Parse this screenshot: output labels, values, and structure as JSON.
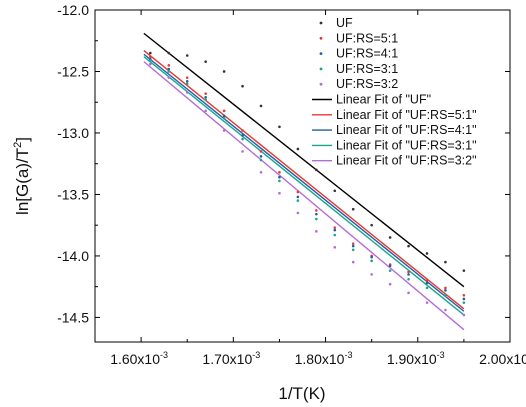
{
  "chart_data": {
    "type": "scatter",
    "title": "",
    "xlabel": "1/T(K)",
    "ylabel_base": "ln[G(a)/T",
    "ylabel_sup": "2",
    "ylabel_tail": "]",
    "xlim": [
      0.00155,
      0.002
    ],
    "ylim": [
      -14.7,
      -12.0
    ],
    "x_ticks": [
      {
        "value": 0.0016,
        "mant": "1.60x10",
        "exp": "-3"
      },
      {
        "value": 0.0017,
        "mant": "1.70x10",
        "exp": "-3"
      },
      {
        "value": 0.0018,
        "mant": "1.80x10",
        "exp": "-3"
      },
      {
        "value": 0.0019,
        "mant": "1.90x10",
        "exp": "-3"
      },
      {
        "value": 0.002,
        "mant": "2.00x10",
        "exp": "-3"
      }
    ],
    "y_ticks": [
      {
        "value": -12.0,
        "label": "-12.0"
      },
      {
        "value": -12.5,
        "label": "-12.5"
      },
      {
        "value": -13.0,
        "label": "-13.0"
      },
      {
        "value": -13.5,
        "label": "-13.5"
      },
      {
        "value": -14.0,
        "label": "-14.0"
      },
      {
        "value": -14.5,
        "label": "-14.5"
      }
    ],
    "legend_position": "top-right",
    "series": [
      {
        "name": "UF",
        "color": "#333333",
        "x": [
          0.00161,
          0.00163,
          0.00165,
          0.00167,
          0.00169,
          0.00171,
          0.00173,
          0.00175,
          0.00177,
          0.00179,
          0.00181,
          0.00183,
          0.00185,
          0.00187,
          0.00189,
          0.00191,
          0.00193,
          0.00195
        ],
        "y": [
          -12.35,
          -12.35,
          -12.37,
          -12.42,
          -12.5,
          -12.62,
          -12.78,
          -12.95,
          -13.13,
          -13.3,
          -13.47,
          -13.62,
          -13.75,
          -13.85,
          -13.92,
          -13.98,
          -14.05,
          -14.12
        ]
      },
      {
        "name": "UF:RS=5:1",
        "color": "#e8372f",
        "x": [
          0.00161,
          0.00163,
          0.00165,
          0.00167,
          0.00169,
          0.00171,
          0.00173,
          0.00175,
          0.00177,
          0.00179,
          0.00181,
          0.00183,
          0.00185,
          0.00187,
          0.00189,
          0.00191,
          0.00193,
          0.00195
        ],
        "y": [
          -12.38,
          -12.45,
          -12.55,
          -12.68,
          -12.82,
          -12.98,
          -13.15,
          -13.32,
          -13.48,
          -13.63,
          -13.77,
          -13.9,
          -14.0,
          -14.07,
          -14.13,
          -14.2,
          -14.26,
          -14.32
        ]
      },
      {
        "name": "UF:RS=4:1",
        "color": "#1d5fa8",
        "x": [
          0.00161,
          0.00163,
          0.00165,
          0.00167,
          0.00169,
          0.00171,
          0.00173,
          0.00175,
          0.00177,
          0.00179,
          0.00181,
          0.00183,
          0.00185,
          0.00187,
          0.00189,
          0.00191,
          0.00193,
          0.00195
        ],
        "y": [
          -12.4,
          -12.48,
          -12.58,
          -12.71,
          -12.86,
          -13.02,
          -13.19,
          -13.36,
          -13.52,
          -13.66,
          -13.79,
          -13.92,
          -14.01,
          -14.08,
          -14.15,
          -14.22,
          -14.28,
          -14.35
        ]
      },
      {
        "name": "UF:RS=3:1",
        "color": "#1fa38c",
        "x": [
          0.00161,
          0.00163,
          0.00165,
          0.00167,
          0.00169,
          0.00171,
          0.00173,
          0.00175,
          0.00177,
          0.00179,
          0.00181,
          0.00183,
          0.00185,
          0.00187,
          0.00189,
          0.00191,
          0.00193,
          0.00195
        ],
        "y": [
          -12.41,
          -12.5,
          -12.6,
          -12.73,
          -12.88,
          -13.05,
          -13.22,
          -13.39,
          -13.55,
          -13.7,
          -13.83,
          -13.95,
          -14.04,
          -14.12,
          -14.19,
          -14.26,
          -14.32,
          -14.38
        ]
      },
      {
        "name": "UF:RS=3:2",
        "color": "#b46bd6",
        "x": [
          0.00161,
          0.00163,
          0.00165,
          0.00167,
          0.00169,
          0.00171,
          0.00173,
          0.00175,
          0.00177,
          0.00179,
          0.00181,
          0.00183,
          0.00185,
          0.00187,
          0.00189,
          0.00191,
          0.00193,
          0.00195
        ],
        "y": [
          -12.44,
          -12.55,
          -12.67,
          -12.82,
          -12.98,
          -13.15,
          -13.32,
          -13.49,
          -13.65,
          -13.8,
          -13.93,
          -14.05,
          -14.15,
          -14.23,
          -14.3,
          -14.38,
          -14.44,
          -14.48
        ]
      }
    ],
    "fits": [
      {
        "name": "Linear Fit of \"UF\"",
        "color": "#000000",
        "x": [
          0.001603,
          0.00195
        ],
        "y": [
          -12.19,
          -14.25
        ]
      },
      {
        "name": "Linear Fit of \"UF:RS=5:1\"",
        "color": "#e8372f",
        "x": [
          0.001603,
          0.00195
        ],
        "y": [
          -12.33,
          -14.43
        ]
      },
      {
        "name": "Linear Fit of \"UF:RS=4:1\"",
        "color": "#1d5fa8",
        "x": [
          0.001603,
          0.00195
        ],
        "y": [
          -12.36,
          -14.45
        ]
      },
      {
        "name": "Linear Fit of \"UF:RS=3:1\"",
        "color": "#1fa38c",
        "x": [
          0.001603,
          0.00195
        ],
        "y": [
          -12.38,
          -14.48
        ]
      },
      {
        "name": "Linear Fit of \"UF:RS=3:2\"",
        "color": "#b46bd6",
        "x": [
          0.001603,
          0.00195
        ],
        "y": [
          -12.42,
          -14.6
        ]
      }
    ]
  }
}
